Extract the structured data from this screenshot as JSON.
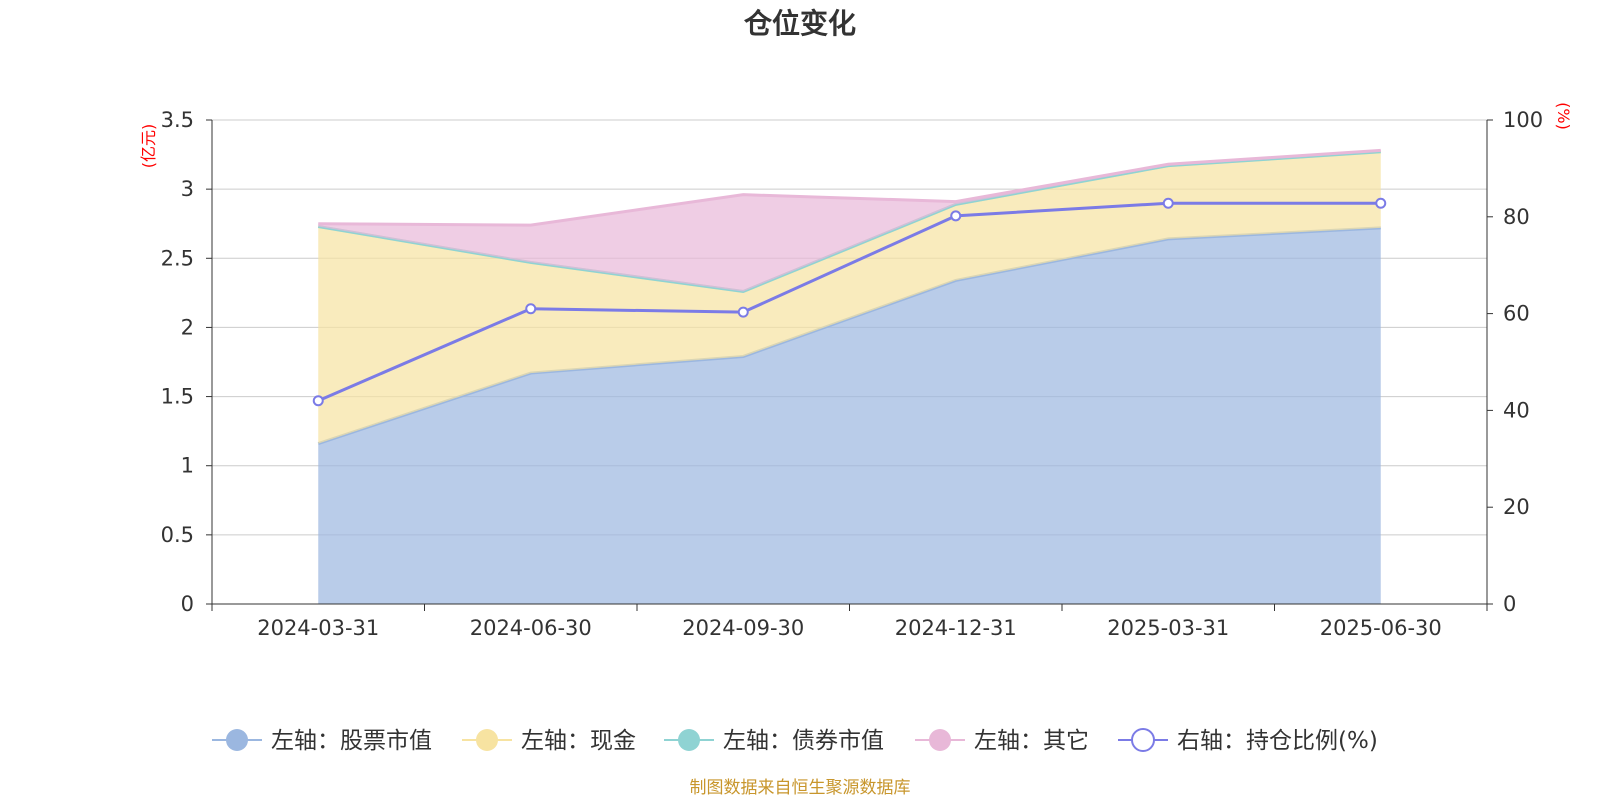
{
  "chart_data": {
    "type": "area",
    "title": "仓位变化",
    "left_axis_unit": "(亿元)",
    "right_axis_unit": "(%)",
    "categories": [
      "2024-03-31",
      "2024-06-30",
      "2024-09-30",
      "2024-12-31",
      "2025-03-31",
      "2025-06-30"
    ],
    "left_axis": {
      "ylim": [
        0,
        3.5
      ],
      "ticks": [
        "0",
        "0.5",
        "1",
        "1.5",
        "2",
        "2.5",
        "3",
        "3.5"
      ]
    },
    "right_axis": {
      "ylim": [
        0,
        100
      ],
      "ticks": [
        "0",
        "20",
        "40",
        "60",
        "80",
        "100"
      ]
    },
    "grid": true,
    "legend_position": "bottom",
    "series": [
      {
        "name": "左轴：股票市值",
        "axis": "left",
        "kind": "stacked-area",
        "color": "#9bb7e0",
        "values": [
          1.16,
          1.67,
          1.79,
          2.34,
          2.64,
          2.72
        ]
      },
      {
        "name": "左轴：现金",
        "axis": "left",
        "kind": "stacked-area",
        "color": "#f7e3a1",
        "values": [
          1.57,
          0.8,
          0.47,
          0.55,
          0.53,
          0.55
        ]
      },
      {
        "name": "左轴：债券市值",
        "axis": "left",
        "kind": "stacked-area",
        "color": "#8fd3d3",
        "values": [
          0,
          0,
          0,
          0,
          0,
          0
        ]
      },
      {
        "name": "左轴：其它",
        "axis": "left",
        "kind": "stacked-area",
        "color": "#e8b8d8",
        "values": [
          0.02,
          0.27,
          0.7,
          0.02,
          0.01,
          0.01
        ]
      },
      {
        "name": "右轴：持仓比例(%)",
        "axis": "right",
        "kind": "line",
        "color": "#7b7be6",
        "values": [
          42.0,
          61.0,
          60.3,
          80.2,
          82.8,
          82.8
        ]
      }
    ],
    "source_note": "制图数据来自恒生聚源数据库"
  }
}
